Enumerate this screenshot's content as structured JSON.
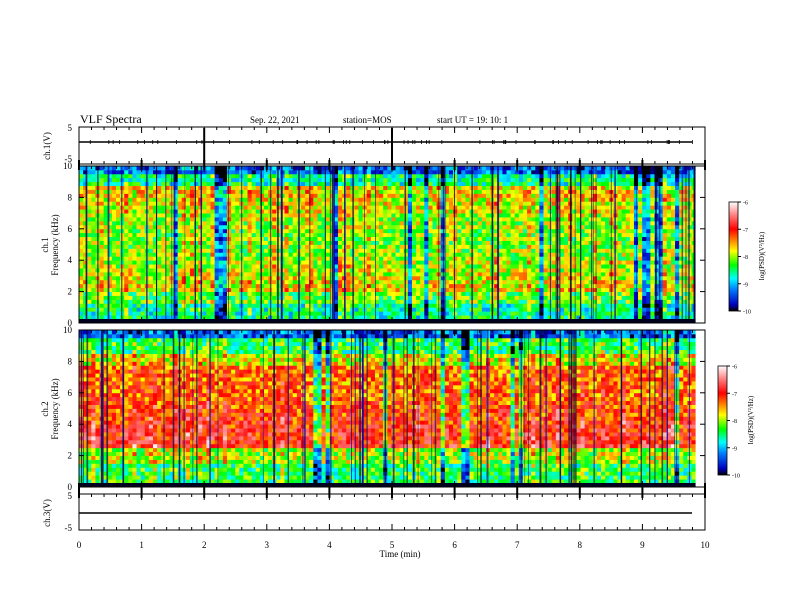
{
  "header": {
    "title": "VLF Spectra",
    "date": "Sep. 22, 2021",
    "station": "station=MOS",
    "start_ut": "start  UT =   19: 10: 1"
  },
  "chart_data": [
    {
      "type": "line",
      "name": "ch1-waveform",
      "ylabel": "ch.1(V)",
      "ylim": [
        -5,
        5
      ],
      "yticks": [
        "5",
        "-5"
      ],
      "xlim": [
        0,
        10
      ],
      "series": [
        {
          "x": [
            0,
            9.85
          ],
          "y": [
            0,
            0
          ]
        }
      ]
    },
    {
      "type": "heatmap",
      "name": "ch1-spectrogram",
      "ylabel": "ch.1\nFrequency (kHz)",
      "ylim": [
        0,
        10
      ],
      "yticks": [
        "0",
        "2",
        "4",
        "6",
        "8",
        "10"
      ],
      "xlim": [
        0,
        10
      ],
      "data_end_min": 9.85,
      "colorbar": {
        "label": "log(PSD)(V²/Hz)",
        "range": [
          -10,
          -6
        ],
        "ticks": [
          "-6",
          "-7",
          "-8",
          "-9",
          "-10"
        ]
      }
    },
    {
      "type": "heatmap",
      "name": "ch2-spectrogram",
      "ylabel": "ch.2\nFrequency (kHz)",
      "ylim": [
        0,
        10
      ],
      "yticks": [
        "0",
        "2",
        "4",
        "6",
        "8",
        "10"
      ],
      "xlim": [
        0,
        10
      ],
      "data_end_min": 9.85,
      "colorbar": {
        "label": "log(PSD)(V²/Hz)",
        "range": [
          -10,
          -6
        ],
        "ticks": [
          "-6",
          "-7",
          "-8",
          "-9",
          "-10"
        ]
      }
    },
    {
      "type": "line",
      "name": "ch3-waveform",
      "ylabel": "ch.3(V)",
      "ylim": [
        -5,
        5
      ],
      "yticks": [
        "5",
        "-5"
      ],
      "xlim": [
        0,
        10
      ],
      "xlabel": "Time (min)",
      "xticks": [
        "0",
        "1",
        "2",
        "3",
        "4",
        "5",
        "6",
        "7",
        "8",
        "9",
        "10"
      ],
      "series": [
        {
          "x": [
            0,
            9.85
          ],
          "y": [
            0,
            0
          ]
        }
      ]
    }
  ],
  "colors": {
    "colormap": [
      "#000080",
      "#0000ff",
      "#00c0ff",
      "#00ffff",
      "#00ff80",
      "#80ff00",
      "#ffff00",
      "#ff8000",
      "#ff0000",
      "#ffffff"
    ]
  }
}
